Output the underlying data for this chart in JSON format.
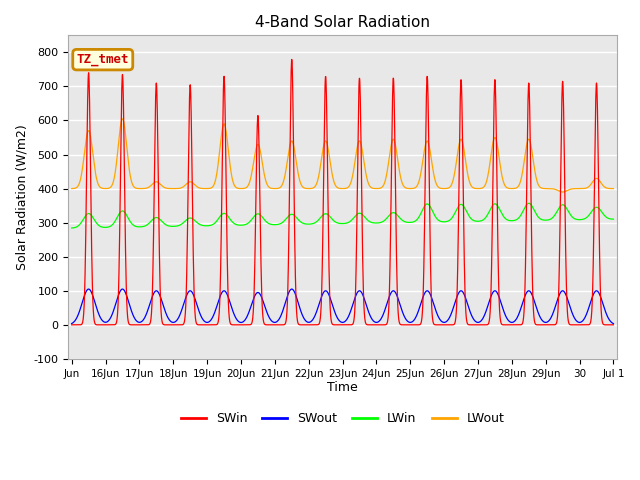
{
  "title": "4-Band Solar Radiation",
  "xlabel": "Time",
  "ylabel": "Solar Radiation (W/m2)",
  "ylim": [
    -100,
    850
  ],
  "background_color": "#ffffff",
  "plot_bg_color": "#e8e8e8",
  "grid_color": "#ffffff",
  "annotation_text": "TZ_tmet",
  "annotation_bg": "#ffffdd",
  "annotation_border": "#cc8800",
  "annotation_text_color": "#cc0000",
  "legend_colors": [
    "#ff0000",
    "#0000ff",
    "#00ff00",
    "#ffa500"
  ],
  "legend_labels": [
    "SWin",
    "SWout",
    "LWin",
    "LWout"
  ],
  "tick_labels": [
    "Jun",
    "16Jun",
    "17Jun",
    "18Jun",
    "19Jun",
    "20Jun",
    "21Jun",
    "22Jun",
    "23Jun",
    "24Jun",
    "25Jun",
    "26Jun",
    "27Jun",
    "28Jun",
    "29Jun",
    "30",
    "Jul 1"
  ],
  "swin_peaks": [
    740,
    735,
    710,
    705,
    730,
    615,
    780,
    730,
    725,
    725,
    730,
    720,
    720,
    710,
    715,
    710
  ],
  "swout_peaks": [
    105,
    105,
    100,
    100,
    100,
    95,
    105,
    100,
    100,
    100,
    100,
    100,
    100,
    100,
    100,
    100
  ],
  "lwin_base": 290,
  "lwin_peaks": [
    360,
    370,
    335,
    330,
    350,
    345,
    340,
    340,
    340,
    340,
    380,
    375,
    375,
    375,
    365,
    350
  ],
  "lwout_base": 400,
  "lwout_peaks": [
    570,
    605,
    420,
    420,
    590,
    530,
    540,
    540,
    540,
    545,
    540,
    545,
    550,
    545,
    390,
    430
  ]
}
